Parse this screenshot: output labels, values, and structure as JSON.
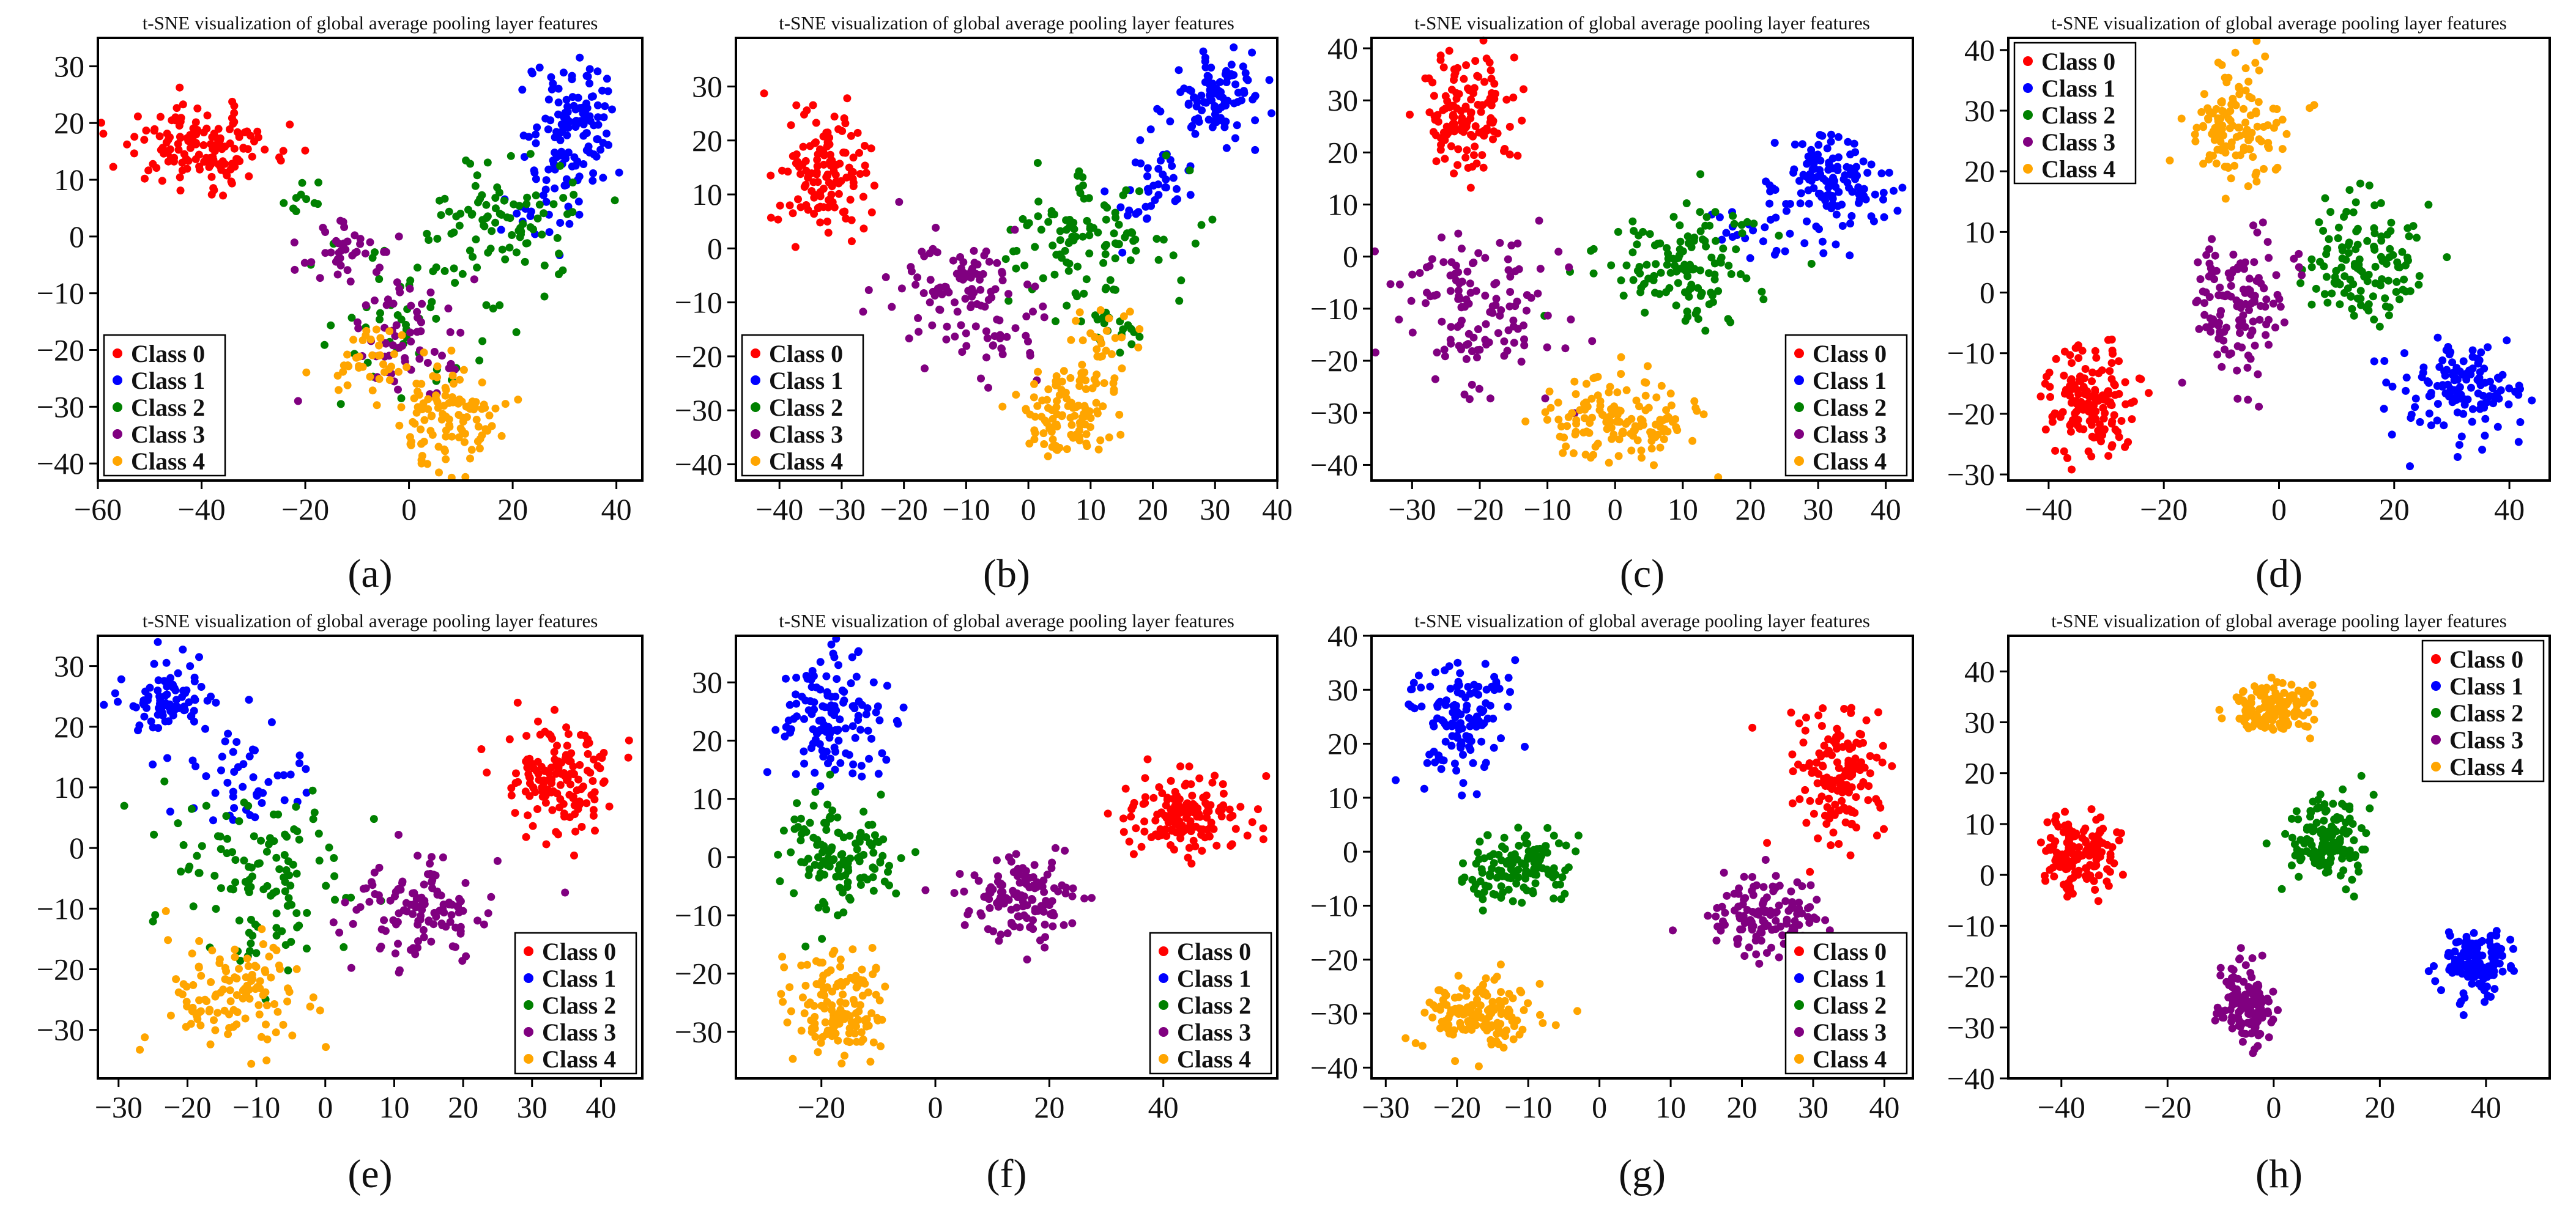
{
  "figure": {
    "subfigure_captions": [
      "(a)",
      "(b)",
      "(c)",
      "(d)",
      "(e)",
      "(f)",
      "(g)",
      "(h)"
    ]
  },
  "chart_data": [
    {
      "id": "a",
      "type": "scatter",
      "caption": "(a)",
      "title": "t-SNE visualization of global average pooling layer features",
      "xlabel": "",
      "ylabel": "",
      "xlim": [
        -60,
        45
      ],
      "ylim": [
        -43,
        35
      ],
      "xticks": [
        -60,
        -40,
        -20,
        0,
        20,
        40
      ],
      "yticks": [
        -40,
        -30,
        -20,
        -10,
        0,
        10,
        20,
        30
      ],
      "legend": {
        "position": "bottom-left",
        "entries": [
          "Class 0",
          "Class 1",
          "Class 2",
          "Class 3",
          "Class 4"
        ]
      },
      "series": [
        {
          "name": "Class 0",
          "color": "#ff0000",
          "clusters": [
            {
              "cx": -40,
              "cy": 16,
              "sx": 9,
              "sy": 4,
              "n": 150
            }
          ]
        },
        {
          "name": "Class 1",
          "color": "#0000ff",
          "clusters": [
            {
              "cx": 32,
              "cy": 20,
              "sx": 5,
              "sy": 7,
              "n": 120
            },
            {
              "cx": 25,
              "cy": 5,
              "sx": 5,
              "sy": 4,
              "n": 25
            }
          ]
        },
        {
          "name": "Class 2",
          "color": "#008000",
          "clusters": [
            {
              "cx": 18,
              "cy": 3,
              "sx": 8,
              "sy": 6,
              "n": 90
            },
            {
              "cx": 0,
              "cy": -15,
              "sx": 10,
              "sy": 8,
              "n": 50
            },
            {
              "cx": -20,
              "cy": 7,
              "sx": 2,
              "sy": 1.5,
              "n": 10
            }
          ]
        },
        {
          "name": "Class 3",
          "color": "#800080",
          "clusters": [
            {
              "cx": -12,
              "cy": -2,
              "sx": 5,
              "sy": 3,
              "n": 40
            },
            {
              "cx": -2,
              "cy": -18,
              "sx": 7,
              "sy": 7,
              "n": 60
            }
          ]
        },
        {
          "name": "Class 4",
          "color": "#ffa500",
          "clusters": [
            {
              "cx": 8,
              "cy": -32,
              "sx": 6,
              "sy": 5,
              "n": 110
            },
            {
              "cx": -8,
              "cy": -22,
              "sx": 6,
              "sy": 4,
              "n": 40
            }
          ]
        }
      ]
    },
    {
      "id": "b",
      "type": "scatter",
      "caption": "(b)",
      "title": "t-SNE visualization of global average pooling layer features",
      "xlabel": "",
      "ylabel": "",
      "xlim": [
        -47,
        40
      ],
      "ylim": [
        -43,
        39
      ],
      "xticks": [
        -40,
        -30,
        -20,
        -10,
        0,
        10,
        20,
        30,
        40
      ],
      "yticks": [
        -40,
        -30,
        -20,
        -10,
        0,
        10,
        20,
        30
      ],
      "legend": {
        "position": "bottom-left",
        "entries": [
          "Class 0",
          "Class 1",
          "Class 2",
          "Class 3",
          "Class 4"
        ]
      },
      "series": [
        {
          "name": "Class 0",
          "color": "#ff0000",
          "clusters": [
            {
              "cx": -33,
              "cy": 13,
              "sx": 4,
              "sy": 7,
              "n": 130
            }
          ]
        },
        {
          "name": "Class 1",
          "color": "#0000ff",
          "clusters": [
            {
              "cx": 30,
              "cy": 28,
              "sx": 4,
              "sy": 5,
              "n": 100
            },
            {
              "cx": 20,
              "cy": 12,
              "sx": 4,
              "sy": 6,
              "n": 40
            }
          ]
        },
        {
          "name": "Class 2",
          "color": "#008000",
          "clusters": [
            {
              "cx": 10,
              "cy": 2,
              "sx": 8,
              "sy": 7,
              "n": 110
            },
            {
              "cx": 14,
              "cy": -15,
              "sx": 3,
              "sy": 3,
              "n": 20
            }
          ]
        },
        {
          "name": "Class 3",
          "color": "#800080",
          "clusters": [
            {
              "cx": -12,
              "cy": -8,
              "sx": 7,
              "sy": 6,
              "n": 100
            },
            {
              "cx": -2,
              "cy": -18,
              "sx": 4,
              "sy": 4,
              "n": 20
            }
          ]
        },
        {
          "name": "Class 4",
          "color": "#ffa500",
          "clusters": [
            {
              "cx": 6,
              "cy": -30,
              "sx": 5,
              "sy": 5,
              "n": 110
            },
            {
              "cx": 12,
              "cy": -17,
              "sx": 3,
              "sy": 4,
              "n": 25
            }
          ]
        }
      ]
    },
    {
      "id": "c",
      "type": "scatter",
      "caption": "(c)",
      "title": "t-SNE visualization of global average pooling layer features",
      "xlabel": "",
      "ylabel": "",
      "xlim": [
        -36,
        44
      ],
      "ylim": [
        -43,
        42
      ],
      "xticks": [
        -30,
        -20,
        -10,
        0,
        10,
        20,
        30,
        40
      ],
      "yticks": [
        -40,
        -30,
        -20,
        -10,
        0,
        10,
        20,
        30,
        40
      ],
      "legend": {
        "position": "bottom-right",
        "entries": [
          "Class 0",
          "Class 1",
          "Class 2",
          "Class 3",
          "Class 4"
        ]
      },
      "series": [
        {
          "name": "Class 0",
          "color": "#ff0000",
          "clusters": [
            {
              "cx": -22,
              "cy": 27,
              "sx": 4,
              "sy": 7,
              "n": 140
            }
          ]
        },
        {
          "name": "Class 1",
          "color": "#0000ff",
          "clusters": [
            {
              "cx": 32,
              "cy": 14,
              "sx": 5,
              "sy": 6,
              "n": 130
            },
            {
              "cx": 20,
              "cy": 5,
              "sx": 4,
              "sy": 4,
              "n": 20
            }
          ]
        },
        {
          "name": "Class 2",
          "color": "#008000",
          "clusters": [
            {
              "cx": 10,
              "cy": -2,
              "sx": 8,
              "sy": 7,
              "n": 130
            }
          ]
        },
        {
          "name": "Class 3",
          "color": "#800080",
          "clusters": [
            {
              "cx": -20,
              "cy": -12,
              "sx": 7,
              "sy": 9,
              "n": 130
            }
          ]
        },
        {
          "name": "Class 4",
          "color": "#ffa500",
          "clusters": [
            {
              "cx": 2,
              "cy": -32,
              "sx": 7,
              "sy": 5,
              "n": 140
            }
          ]
        }
      ]
    },
    {
      "id": "d",
      "type": "scatter",
      "caption": "(d)",
      "title": "t-SNE visualization of global average pooling layer features",
      "xlabel": "",
      "ylabel": "",
      "xlim": [
        -47,
        47
      ],
      "ylim": [
        -31,
        42
      ],
      "xticks": [
        -40,
        -20,
        0,
        20,
        40
      ],
      "yticks": [
        -30,
        -20,
        -10,
        0,
        10,
        20,
        30,
        40
      ],
      "legend": {
        "position": "top-left",
        "entries": [
          "Class 0",
          "Class 1",
          "Class 2",
          "Class 3",
          "Class 4"
        ]
      },
      "series": [
        {
          "name": "Class 0",
          "color": "#ff0000",
          "clusters": [
            {
              "cx": -33,
              "cy": -18,
              "sx": 5,
              "sy": 5,
              "n": 150
            }
          ]
        },
        {
          "name": "Class 1",
          "color": "#0000ff",
          "clusters": [
            {
              "cx": 33,
              "cy": -15,
              "sx": 6,
              "sy": 5,
              "n": 130
            }
          ]
        },
        {
          "name": "Class 2",
          "color": "#008000",
          "clusters": [
            {
              "cx": 15,
              "cy": 5,
              "sx": 6,
              "sy": 6,
              "n": 130
            }
          ]
        },
        {
          "name": "Class 3",
          "color": "#800080",
          "clusters": [
            {
              "cx": -7,
              "cy": -2,
              "sx": 5,
              "sy": 7,
              "n": 130
            }
          ]
        },
        {
          "name": "Class 4",
          "color": "#ffa500",
          "clusters": [
            {
              "cx": -8,
              "cy": 28,
              "sx": 5,
              "sy": 6,
              "n": 130
            }
          ]
        }
      ]
    },
    {
      "id": "e",
      "type": "scatter",
      "caption": "(e)",
      "title": "t-SNE visualization of global average pooling layer features",
      "xlabel": "",
      "ylabel": "",
      "xlim": [
        -33,
        46
      ],
      "ylim": [
        -38,
        35
      ],
      "xticks": [
        -30,
        -20,
        -10,
        0,
        10,
        20,
        30,
        40
      ],
      "yticks": [
        -30,
        -20,
        -10,
        0,
        10,
        20,
        30
      ],
      "legend": {
        "position": "bottom-right",
        "entries": [
          "Class 0",
          "Class 1",
          "Class 2",
          "Class 3",
          "Class 4"
        ]
      },
      "series": [
        {
          "name": "Class 0",
          "color": "#ff0000",
          "clusters": [
            {
              "cx": 34,
              "cy": 11,
              "sx": 5,
              "sy": 5,
              "n": 150
            }
          ]
        },
        {
          "name": "Class 1",
          "color": "#0000ff",
          "clusters": [
            {
              "cx": -22,
              "cy": 25,
              "sx": 4,
              "sy": 4,
              "n": 80
            },
            {
              "cx": -12,
              "cy": 10,
              "sx": 6,
              "sy": 5,
              "n": 50
            }
          ]
        },
        {
          "name": "Class 2",
          "color": "#008000",
          "clusters": [
            {
              "cx": -10,
              "cy": -5,
              "sx": 8,
              "sy": 8,
              "n": 120
            }
          ]
        },
        {
          "name": "Class 3",
          "color": "#800080",
          "clusters": [
            {
              "cx": 14,
              "cy": -10,
              "sx": 6,
              "sy": 5,
              "n": 120
            }
          ]
        },
        {
          "name": "Class 4",
          "color": "#ffa500",
          "clusters": [
            {
              "cx": -14,
              "cy": -24,
              "sx": 6,
              "sy": 6,
              "n": 120
            }
          ]
        }
      ]
    },
    {
      "id": "f",
      "type": "scatter",
      "caption": "(f)",
      "title": "t-SNE visualization of global average pooling layer features",
      "xlabel": "",
      "ylabel": "",
      "xlim": [
        -35,
        60
      ],
      "ylim": [
        -38,
        38
      ],
      "xticks": [
        -20,
        0,
        20,
        40
      ],
      "yticks": [
        -30,
        -20,
        -10,
        0,
        10,
        20,
        30
      ],
      "legend": {
        "position": "bottom-right",
        "entries": [
          "Class 0",
          "Class 1",
          "Class 2",
          "Class 3",
          "Class 4"
        ]
      },
      "series": [
        {
          "name": "Class 0",
          "color": "#ff0000",
          "clusters": [
            {
              "cx": 43,
              "cy": 7,
              "sx": 6,
              "sy": 4,
              "n": 150
            }
          ]
        },
        {
          "name": "Class 1",
          "color": "#0000ff",
          "clusters": [
            {
              "cx": -18,
              "cy": 24,
              "sx": 5,
              "sy": 6,
              "n": 130
            }
          ]
        },
        {
          "name": "Class 2",
          "color": "#008000",
          "clusters": [
            {
              "cx": -17,
              "cy": 0,
              "sx": 6,
              "sy": 6,
              "n": 130
            }
          ]
        },
        {
          "name": "Class 3",
          "color": "#800080",
          "clusters": [
            {
              "cx": 15,
              "cy": -7,
              "sx": 6,
              "sy": 4,
              "n": 130
            }
          ]
        },
        {
          "name": "Class 4",
          "color": "#ffa500",
          "clusters": [
            {
              "cx": -17,
              "cy": -25,
              "sx": 5,
              "sy": 5,
              "n": 140
            }
          ]
        }
      ]
    },
    {
      "id": "g",
      "type": "scatter",
      "caption": "(g)",
      "title": "t-SNE visualization of global average pooling layer features",
      "xlabel": "",
      "ylabel": "",
      "xlim": [
        -32,
        44
      ],
      "ylim": [
        -42,
        40
      ],
      "xticks": [
        -30,
        -20,
        -10,
        0,
        10,
        20,
        30,
        40
      ],
      "yticks": [
        -40,
        -30,
        -20,
        -10,
        0,
        10,
        20,
        30,
        40
      ],
      "legend": {
        "position": "bottom-right",
        "entries": [
          "Class 0",
          "Class 1",
          "Class 2",
          "Class 3",
          "Class 4"
        ]
      },
      "series": [
        {
          "name": "Class 0",
          "color": "#ff0000",
          "clusters": [
            {
              "cx": 33,
              "cy": 14,
              "sx": 4,
              "sy": 8,
              "n": 150
            }
          ]
        },
        {
          "name": "Class 1",
          "color": "#0000ff",
          "clusters": [
            {
              "cx": -20,
              "cy": 25,
              "sx": 4,
              "sy": 6,
              "n": 130
            }
          ]
        },
        {
          "name": "Class 2",
          "color": "#008000",
          "clusters": [
            {
              "cx": -11,
              "cy": -3,
              "sx": 5,
              "sy": 4,
              "n": 130
            }
          ]
        },
        {
          "name": "Class 3",
          "color": "#800080",
          "clusters": [
            {
              "cx": 23,
              "cy": -12,
              "sx": 5,
              "sy": 4,
              "n": 130
            }
          ]
        },
        {
          "name": "Class 4",
          "color": "#ffa500",
          "clusters": [
            {
              "cx": -17,
              "cy": -30,
              "sx": 5,
              "sy": 4,
              "n": 140
            }
          ]
        }
      ]
    },
    {
      "id": "h",
      "type": "scatter",
      "caption": "(h)",
      "title": "t-SNE visualization of global average pooling layer features",
      "xlabel": "",
      "ylabel": "",
      "xlim": [
        -50,
        52
      ],
      "ylim": [
        -40,
        47
      ],
      "xticks": [
        -40,
        -20,
        0,
        20,
        40
      ],
      "yticks": [
        -40,
        -30,
        -20,
        -10,
        0,
        10,
        20,
        30,
        40
      ],
      "legend": {
        "position": "top-right",
        "entries": [
          "Class 0",
          "Class 1",
          "Class 2",
          "Class 3",
          "Class 4"
        ]
      },
      "series": [
        {
          "name": "Class 0",
          "color": "#ff0000",
          "clusters": [
            {
              "cx": -37,
              "cy": 4,
              "sx": 4,
              "sy": 4,
              "n": 150
            }
          ]
        },
        {
          "name": "Class 1",
          "color": "#0000ff",
          "clusters": [
            {
              "cx": 38,
              "cy": -18,
              "sx": 4,
              "sy": 4,
              "n": 140
            }
          ]
        },
        {
          "name": "Class 2",
          "color": "#008000",
          "clusters": [
            {
              "cx": 10,
              "cy": 7,
              "sx": 4,
              "sy": 5,
              "n": 140
            }
          ]
        },
        {
          "name": "Class 3",
          "color": "#800080",
          "clusters": [
            {
              "cx": -5,
              "cy": -25,
              "sx": 3,
              "sy": 5,
              "n": 140
            }
          ]
        },
        {
          "name": "Class 4",
          "color": "#ffa500",
          "clusters": [
            {
              "cx": 0,
              "cy": 33,
              "sx": 4,
              "sy": 3,
              "n": 140
            }
          ]
        }
      ]
    }
  ]
}
